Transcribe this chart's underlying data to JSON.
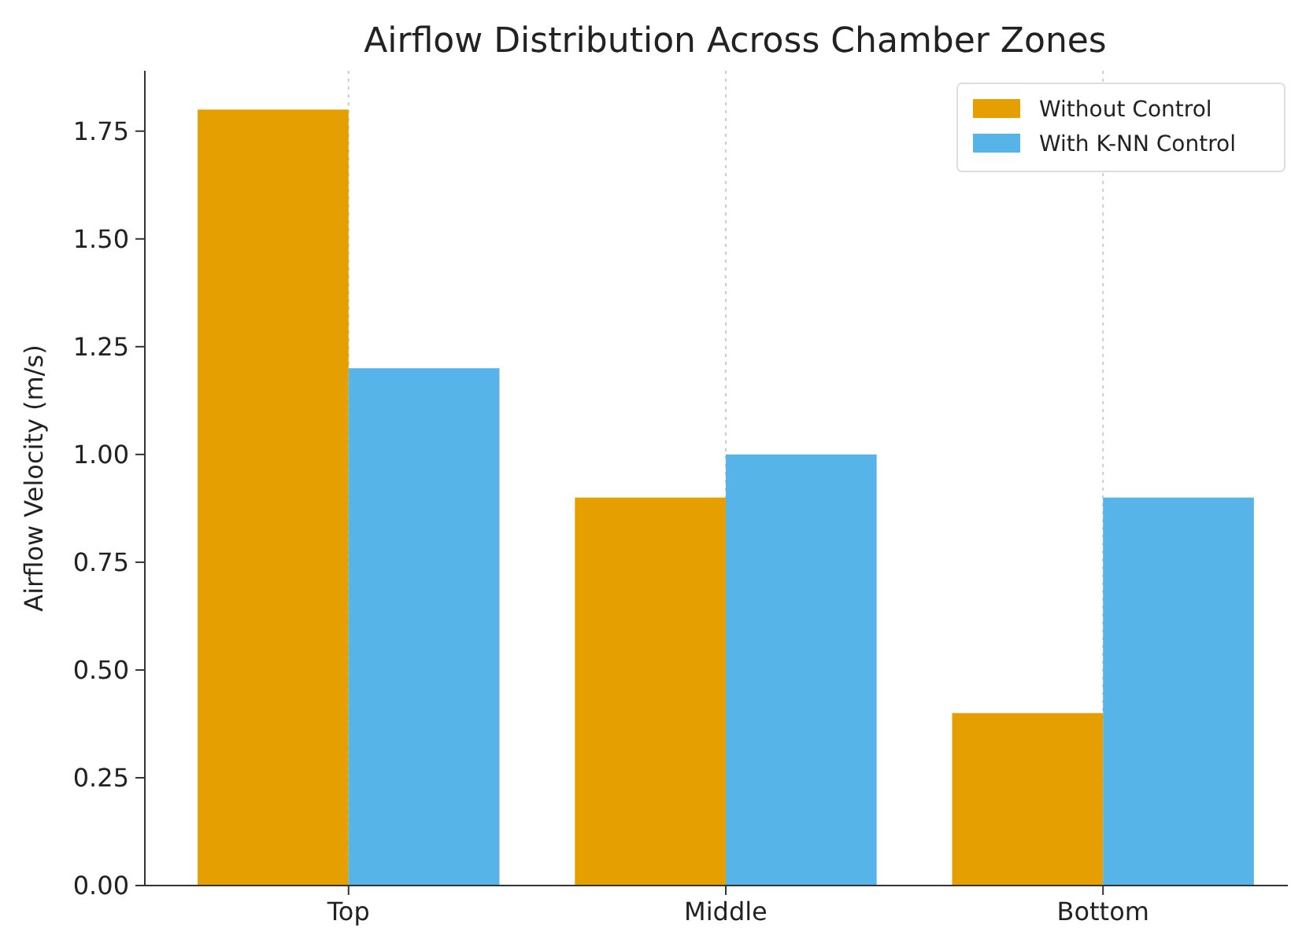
{
  "chart_data": {
    "type": "bar",
    "title": "Airflow Distribution Across Chamber Zones",
    "ylabel": "Airflow Velocity (m/s)",
    "categories": [
      "Top",
      "Middle",
      "Bottom"
    ],
    "series": [
      {
        "name": "Without Control",
        "color": "#e69f00",
        "values": [
          1.8,
          0.9,
          0.4
        ]
      },
      {
        "name": "With K-NN Control",
        "color": "#56b4e9",
        "values": [
          1.2,
          1.0,
          0.9
        ]
      }
    ],
    "ylim": [
      0,
      1.89
    ],
    "yticks": [
      {
        "value": 0,
        "label": "0.00"
      },
      {
        "value": 0.25,
        "label": "0.25"
      },
      {
        "value": 0.5,
        "label": "0.50"
      },
      {
        "value": 0.75,
        "label": "0.75"
      },
      {
        "value": 1,
        "label": "1.00"
      },
      {
        "value": 1.25,
        "label": "1.25"
      },
      {
        "value": 1.5,
        "label": "1.50"
      },
      {
        "value": 1.75,
        "label": "1.75"
      }
    ],
    "grid": "x",
    "legend": "top right"
  }
}
